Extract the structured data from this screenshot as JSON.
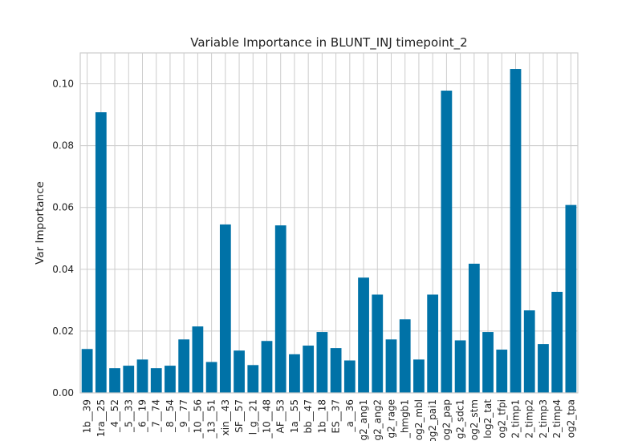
{
  "chart_data": {
    "type": "bar",
    "title": "Variable Importance in BLUNT_INJ timepoint_2",
    "xlabel": "",
    "ylabel": "Var Importance",
    "ylim": [
      0,
      0.11
    ],
    "yticks": [
      0.0,
      0.02,
      0.04,
      0.06,
      0.08,
      0.1
    ],
    "ytick_labels": [
      "0.00",
      "0.02",
      "0.04",
      "0.06",
      "0.08",
      "0.10"
    ],
    "grid": true,
    "bar_color": "#0072a7",
    "categories": [
      "1b__39",
      "1ra__25",
      "_4__52",
      "_5__33",
      "_6__19",
      "_7__74",
      "_8__54",
      "_9__77",
      "_10__56",
      "_13__51",
      "xin__43",
      "SF__57",
      "l_g__21",
      "_10__48",
      "AF__53",
      "1a__55",
      "bb__47",
      "1b__18",
      "ES__37",
      "_a__36",
      "g2_ang1",
      "g2_ang2",
      "g2_rage",
      "_hmgb1",
      "og2_mbl",
      "og2_pai1",
      "og2_pap",
      "g2_sdc1",
      "og2_stm",
      "log2_tat",
      "og2_tfpi",
      "2_timp1",
      "2_timp2",
      "2_timp3",
      "2_timp4",
      "og2_tpa"
    ],
    "values": [
      0.0142,
      0.0908,
      0.008,
      0.0088,
      0.0108,
      0.008,
      0.0088,
      0.0173,
      0.0215,
      0.01,
      0.0545,
      0.0137,
      0.009,
      0.0168,
      0.0542,
      0.0125,
      0.0153,
      0.0197,
      0.0145,
      0.0105,
      0.0373,
      0.0318,
      0.0173,
      0.0238,
      0.0108,
      0.0318,
      0.0978,
      0.017,
      0.0418,
      0.0197,
      0.014,
      0.1048,
      0.0267,
      0.0158,
      0.0327,
      0.0608
    ]
  }
}
